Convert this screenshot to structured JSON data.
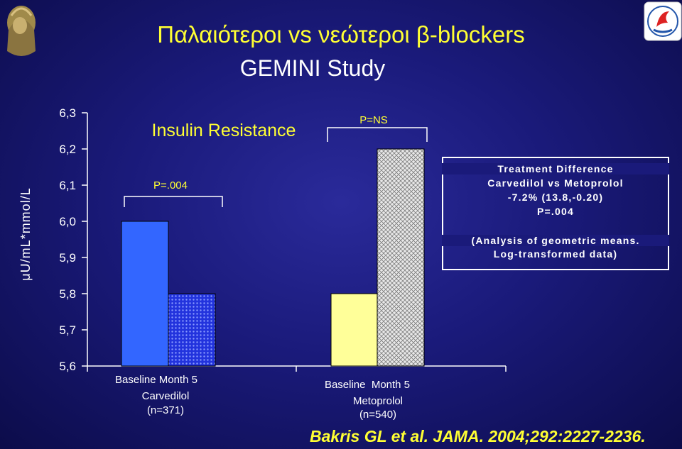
{
  "title": "Παλαιότεροι vs νεώτεροι β-blockers",
  "subtitle": "GEMINI Study",
  "chart_data": {
    "type": "bar",
    "title": "Insulin Resistance",
    "ylabel": "μU/mL*mmol/L",
    "ylim": [
      5.6,
      6.3
    ],
    "yticks": [
      "6,3",
      "6,2",
      "6,1",
      "6,0",
      "5,9",
      "5,8",
      "5,7",
      "5,6"
    ],
    "groups": [
      {
        "name_line1": "Baseline Month 5",
        "name_line2": "Carvedilol",
        "name_line3": "(n=371)",
        "p_label": "P=.004",
        "values": [
          6.0,
          5.8
        ]
      },
      {
        "name_line1": "Baseline  Month 5",
        "name_line2": "Metoprolol",
        "name_line3": "(n=540)",
        "p_label": "P=NS",
        "values": [
          5.8,
          6.2
        ]
      }
    ],
    "bar_colors": [
      "#3366ff",
      "#2233dd",
      "#ffff99",
      "#e8e8e8"
    ]
  },
  "infobox": {
    "line1": "Treatment Difference",
    "line2": "Carvedilol vs Metoprolol",
    "line3": "-7.2% (13.8,-0.20)",
    "line4": "P=.004",
    "line5": "(Analysis of geometric means.",
    "line6": "Log-transformed data)"
  },
  "citation": "Bakris GL et al. JAMA. 2004;292:2227-2236."
}
